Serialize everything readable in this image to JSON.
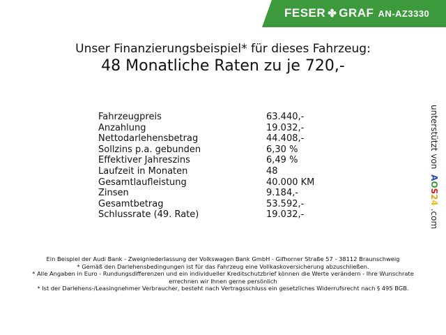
{
  "header": {
    "brand_left": "FESER",
    "brand_right": "GRAF",
    "code": "AN-AZ3330",
    "color": "#3c9a3c"
  },
  "title": {
    "line1": "Unser Finanzierungsbeispiel* für dieses Fahrzeug:",
    "line2": "48 Monatliche Raten zu je 720,-"
  },
  "rows": [
    {
      "label": "Fahrzeugpreis",
      "value": "63.440,-"
    },
    {
      "label": "Anzahlung",
      "value": "19.032,-"
    },
    {
      "label": "Nettodarlehensbetrag",
      "value": "44.408,-"
    },
    {
      "label": "Sollzins p.a. gebunden",
      "value": "6,30 %"
    },
    {
      "label": "Effektiver Jahreszins",
      "value": "6,49 %"
    },
    {
      "label": "Laufzeit in Monaten",
      "value": "48"
    },
    {
      "label": "Gesamtlaufleistung",
      "value": "40.000 KM"
    },
    {
      "label": "Zinsen",
      "value": "9.184,-"
    },
    {
      "label": "Gesamtbetrag",
      "value": "53.592,-"
    },
    {
      "label": "Schlussrate (49. Rate)",
      "value": "19.032,-"
    }
  ],
  "side": {
    "text": "unterstützt von",
    "logo": [
      "A",
      "O",
      "S",
      "2",
      "4"
    ],
    "suffix": ".com"
  },
  "footer": [
    "Ein Beispiel der Audi Bank - Zweigniederlassung der Volkswagen Bank GmbH - Gifhorner Straße 57 - 38112 Braunschweig",
    "* Gemäß den Darlehensbedingungen ist für das Fahrzeug eine Vollkaskoversicherung abzuschließen.",
    "* Alle Angaben in Euro - Rundungsdifferenzen und ein individueller Kreditschutzbrief können die Werte verändern - Ihre Wunschrate errechnen wir Ihnen gerne persönlich",
    "* Ist der Darlehens-/Leasingnehmer Verbraucher, besteht nach Vertragsschluss ein gesetzliches Widerrufsrecht nach § 495 BGB."
  ]
}
